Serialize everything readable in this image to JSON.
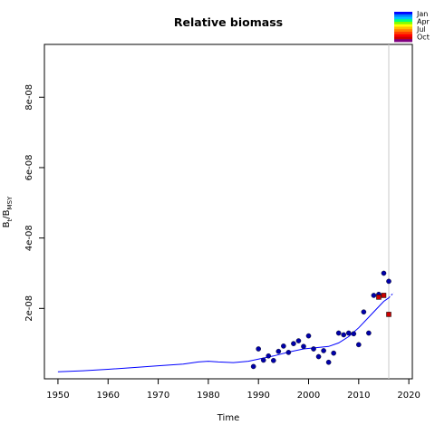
{
  "chart_data": {
    "type": "scatter",
    "title": "Relative biomass",
    "xlabel": "Time",
    "ylabel": {
      "base": "B",
      "sub1": "t",
      "slash": "/B",
      "sub2": "MSY"
    },
    "xlim": [
      1947.3,
      2020.7
    ],
    "ylim": [
      0,
      9.5e-08
    ],
    "x_ticks": [
      1950,
      1960,
      1970,
      1980,
      1990,
      2000,
      2010,
      2020
    ],
    "y_ticks": [
      2e-08,
      4e-08,
      6e-08,
      8e-08
    ],
    "y_tick_labels": [
      "2e-08",
      "4e-08",
      "6e-08",
      "8e-08"
    ],
    "vertical_line_x": 2016,
    "legend": {
      "placement": "top-right",
      "labels": [
        "Jan",
        "Apr",
        "Jul",
        "Oct"
      ],
      "colors": [
        "#0000ff",
        "#0080ff",
        "#00c0ff",
        "#00ff80",
        "#80ff00",
        "#ffff00",
        "#ffc000",
        "#ff8000",
        "#ff4000",
        "#ff0000",
        "#cc0000",
        "#800080"
      ]
    },
    "series": [
      {
        "type": "line",
        "color": "#0000ff",
        "x": [
          1950,
          1955,
          1960,
          1965,
          1970,
          1975,
          1978,
          1980,
          1982,
          1985,
          1988,
          1990,
          1993,
          1996,
          1999,
          2002,
          2004,
          2006,
          2008,
          2010,
          2012,
          2014,
          2015,
          2016
        ],
        "y": [
          2e-09,
          2.3e-09,
          2.7e-09,
          3.2e-09,
          3.7e-09,
          4.2e-09,
          4.8e-09,
          5e-09,
          4.8e-09,
          4.6e-09,
          5e-09,
          5.6e-09,
          6.5e-09,
          7.6e-09,
          8.5e-09,
          8.9e-09,
          9.2e-09,
          1.02e-08,
          1.2e-08,
          1.45e-08,
          1.75e-08,
          2.05e-08,
          2.2e-08,
          2.3e-08
        ]
      },
      {
        "type": "line",
        "dashed": true,
        "color": "#0000ff",
        "x": [
          2016,
          2017
        ],
        "y": [
          2.3e-08,
          2.45e-08
        ]
      },
      {
        "type": "points",
        "color": "#0000aa",
        "x": [
          1989,
          1990,
          1991,
          1992,
          1993,
          1994,
          1995,
          1996,
          1997,
          1998,
          1999,
          2000,
          2001,
          2002,
          2003,
          2004,
          2005,
          2006,
          2007,
          2008,
          2009,
          2010,
          2011,
          2012,
          2013,
          2014,
          2015,
          2016
        ],
        "y": [
          3.5e-09,
          8.5e-09,
          5.3e-09,
          6.5e-09,
          5.2e-09,
          7.8e-09,
          9.3e-09,
          7.5e-09,
          1e-08,
          1.08e-08,
          9.2e-09,
          1.22e-08,
          8.5e-09,
          6.3e-09,
          8e-09,
          4.7e-09,
          7.3e-09,
          1.3e-08,
          1.25e-08,
          1.3e-08,
          1.28e-08,
          9.7e-09,
          1.9e-08,
          1.3e-08,
          2.37e-08,
          2.4e-08,
          3e-08,
          2.77e-08
        ]
      },
      {
        "type": "squares",
        "color": "#cc0000",
        "x": [
          2014,
          2015,
          2016
        ],
        "y": [
          2.32e-08,
          2.37e-08,
          1.83e-08
        ]
      }
    ]
  }
}
